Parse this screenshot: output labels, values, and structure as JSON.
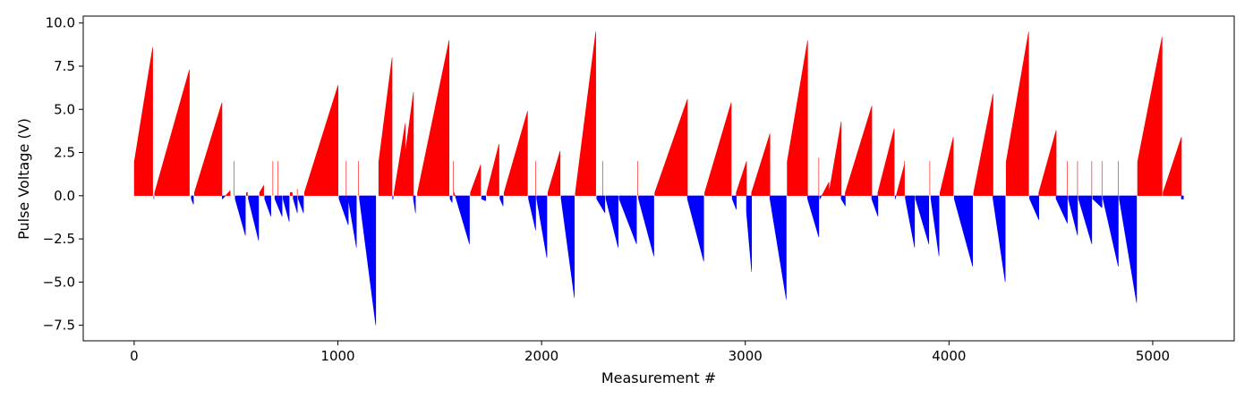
{
  "chart_data": {
    "type": "bar",
    "title": "",
    "xlabel": "Measurement #",
    "ylabel": "Pulse Voltage (V)",
    "xlim": [
      -250,
      5400
    ],
    "ylim": [
      -8.4,
      10.4
    ],
    "xticks": [
      0,
      1000,
      2000,
      3000,
      4000,
      5000
    ],
    "xtick_labels": [
      "0",
      "1000",
      "2000",
      "3000",
      "4000",
      "5000"
    ],
    "yticks": [
      10.0,
      7.5,
      5.0,
      2.5,
      0.0,
      -2.5,
      -5.0,
      -7.5
    ],
    "ytick_labels": [
      "10.0",
      "7.5",
      "5.0",
      "2.5",
      "0.0",
      "−2.5",
      "−5.0",
      "−7.5"
    ],
    "colors": {
      "positive": "#ff0000",
      "negative": "#0000ff",
      "axis": "#000000",
      "background": "#ffffff"
    },
    "grid": false,
    "legend": "none",
    "point_count": 5150,
    "ramps": [
      {
        "x_start": 0,
        "x_end": 90,
        "v_start": 2.0,
        "v_end": 8.6
      },
      {
        "x_start": 96,
        "x_end": 96,
        "v_start": -0.2,
        "v_end": -0.2
      },
      {
        "x_start": 100,
        "x_end": 270,
        "v_start": 0.2,
        "v_end": 7.3
      },
      {
        "x_start": 280,
        "x_end": 290,
        "v_start": -0.2,
        "v_end": -0.5
      },
      {
        "x_start": 295,
        "x_end": 430,
        "v_start": 0.2,
        "v_end": 5.4
      },
      {
        "x_start": 432,
        "x_end": 470,
        "v_start": -0.2,
        "v_end": 0.3
      },
      {
        "x_start": 490,
        "x_end": 490,
        "v_start": 2.0,
        "v_end": 2.0
      },
      {
        "x_start": 495,
        "x_end": 545,
        "v_start": -0.2,
        "v_end": -2.3
      },
      {
        "x_start": 550,
        "x_end": 555,
        "v_start": 0.2,
        "v_end": 0.2
      },
      {
        "x_start": 560,
        "x_end": 610,
        "v_start": -0.2,
        "v_end": -2.6
      },
      {
        "x_start": 615,
        "x_end": 635,
        "v_start": 0.2,
        "v_end": 0.6
      },
      {
        "x_start": 640,
        "x_end": 670,
        "v_start": -0.2,
        "v_end": -1.2
      },
      {
        "x_start": 680,
        "x_end": 680,
        "v_start": 2.0,
        "v_end": 2.0
      },
      {
        "x_start": 690,
        "x_end": 725,
        "v_start": -0.2,
        "v_end": -1.2
      },
      {
        "x_start": 705,
        "x_end": 705,
        "v_start": 2.0,
        "v_end": 2.0
      },
      {
        "x_start": 730,
        "x_end": 760,
        "v_start": -0.2,
        "v_end": -1.5
      },
      {
        "x_start": 765,
        "x_end": 775,
        "v_start": 0.2,
        "v_end": 0.2
      },
      {
        "x_start": 780,
        "x_end": 800,
        "v_start": -0.2,
        "v_end": -1.0
      },
      {
        "x_start": 800,
        "x_end": 800,
        "v_start": 0.4,
        "v_end": 0.4
      },
      {
        "x_start": 805,
        "x_end": 830,
        "v_start": -0.2,
        "v_end": -1.0
      },
      {
        "x_start": 835,
        "x_end": 1000,
        "v_start": 0.2,
        "v_end": 6.4
      },
      {
        "x_start": 1005,
        "x_end": 1050,
        "v_start": -0.2,
        "v_end": -1.7
      },
      {
        "x_start": 1040,
        "x_end": 1040,
        "v_start": 2.0,
        "v_end": 2.0
      },
      {
        "x_start": 1050,
        "x_end": 1090,
        "v_start": -0.2,
        "v_end": -3.0
      },
      {
        "x_start": 1100,
        "x_end": 1100,
        "v_start": 2.0,
        "v_end": 2.0
      },
      {
        "x_start": 1105,
        "x_end": 1185,
        "v_start": -0.2,
        "v_end": -7.5
      },
      {
        "x_start": 1200,
        "x_end": 1265,
        "v_start": 2.0,
        "v_end": 8.0
      },
      {
        "x_start": 1268,
        "x_end": 1270,
        "v_start": -0.2,
        "v_end": -0.2
      },
      {
        "x_start": 1275,
        "x_end": 1330,
        "v_start": 0.2,
        "v_end": 4.2
      },
      {
        "x_start": 1330,
        "x_end": 1370,
        "v_start": 2.5,
        "v_end": 6.0
      },
      {
        "x_start": 1370,
        "x_end": 1380,
        "v_start": -0.2,
        "v_end": -1.0
      },
      {
        "x_start": 1390,
        "x_end": 1545,
        "v_start": 0.2,
        "v_end": 9.0
      },
      {
        "x_start": 1550,
        "x_end": 1560,
        "v_start": -0.2,
        "v_end": -0.4
      },
      {
        "x_start": 1565,
        "x_end": 1565,
        "v_start": 2.0,
        "v_end": 2.0
      },
      {
        "x_start": 1570,
        "x_end": 1645,
        "v_start": 0.2,
        "v_end": -2.8
      },
      {
        "x_start": 1650,
        "x_end": 1700,
        "v_start": 0.2,
        "v_end": 1.8
      },
      {
        "x_start": 1705,
        "x_end": 1725,
        "v_start": -0.2,
        "v_end": -0.3
      },
      {
        "x_start": 1730,
        "x_end": 1790,
        "v_start": 0.2,
        "v_end": 3.0
      },
      {
        "x_start": 1795,
        "x_end": 1810,
        "v_start": -0.2,
        "v_end": -0.6
      },
      {
        "x_start": 1815,
        "x_end": 1930,
        "v_start": 0.2,
        "v_end": 4.9
      },
      {
        "x_start": 1935,
        "x_end": 1970,
        "v_start": -0.2,
        "v_end": -2.0
      },
      {
        "x_start": 1970,
        "x_end": 1970,
        "v_start": 2.0,
        "v_end": 2.0
      },
      {
        "x_start": 1975,
        "x_end": 2025,
        "v_start": -0.2,
        "v_end": -3.6
      },
      {
        "x_start": 2030,
        "x_end": 2090,
        "v_start": 0.2,
        "v_end": 2.6
      },
      {
        "x_start": 2095,
        "x_end": 2160,
        "v_start": -0.2,
        "v_end": -5.9
      },
      {
        "x_start": 2165,
        "x_end": 2265,
        "v_start": 0.2,
        "v_end": 9.5
      },
      {
        "x_start": 2270,
        "x_end": 2310,
        "v_start": -0.2,
        "v_end": -1.0
      },
      {
        "x_start": 2300,
        "x_end": 2300,
        "v_start": 2.0,
        "v_end": 2.0
      },
      {
        "x_start": 2315,
        "x_end": 2375,
        "v_start": -0.2,
        "v_end": -3.0
      },
      {
        "x_start": 2380,
        "x_end": 2465,
        "v_start": -0.2,
        "v_end": -2.8
      },
      {
        "x_start": 2470,
        "x_end": 2470,
        "v_start": 2.0,
        "v_end": 2.0
      },
      {
        "x_start": 2475,
        "x_end": 2550,
        "v_start": -0.2,
        "v_end": -3.5
      },
      {
        "x_start": 2555,
        "x_end": 2715,
        "v_start": 0.2,
        "v_end": 5.6
      },
      {
        "x_start": 2715,
        "x_end": 2795,
        "v_start": -0.2,
        "v_end": -3.8
      },
      {
        "x_start": 2800,
        "x_end": 2930,
        "v_start": 0.2,
        "v_end": 5.4
      },
      {
        "x_start": 2935,
        "x_end": 2955,
        "v_start": -0.2,
        "v_end": -0.8
      },
      {
        "x_start": 2955,
        "x_end": 3005,
        "v_start": 0.2,
        "v_end": 2.0
      },
      {
        "x_start": 3005,
        "x_end": 3030,
        "v_start": -1.0,
        "v_end": -4.4
      },
      {
        "x_start": 3030,
        "x_end": 3120,
        "v_start": 0.2,
        "v_end": 3.6
      },
      {
        "x_start": 3120,
        "x_end": 3200,
        "v_start": -0.2,
        "v_end": -6.0
      },
      {
        "x_start": 3205,
        "x_end": 3305,
        "v_start": 2.0,
        "v_end": 9.0
      },
      {
        "x_start": 3305,
        "x_end": 3360,
        "v_start": -0.2,
        "v_end": -2.4
      },
      {
        "x_start": 3360,
        "x_end": 3360,
        "v_start": 2.2,
        "v_end": 2.2
      },
      {
        "x_start": 3365,
        "x_end": 3410,
        "v_start": -0.2,
        "v_end": 0.8
      },
      {
        "x_start": 3410,
        "x_end": 3470,
        "v_start": 0.2,
        "v_end": 4.3
      },
      {
        "x_start": 3470,
        "x_end": 3490,
        "v_start": -0.2,
        "v_end": -0.6
      },
      {
        "x_start": 3490,
        "x_end": 3620,
        "v_start": 0.2,
        "v_end": 5.2
      },
      {
        "x_start": 3620,
        "x_end": 3650,
        "v_start": -0.2,
        "v_end": -1.2
      },
      {
        "x_start": 3650,
        "x_end": 3730,
        "v_start": 0.2,
        "v_end": 3.9
      },
      {
        "x_start": 3735,
        "x_end": 3780,
        "v_start": -0.2,
        "v_end": 1.8
      },
      {
        "x_start": 3780,
        "x_end": 3780,
        "v_start": 2.0,
        "v_end": 2.0
      },
      {
        "x_start": 3785,
        "x_end": 3830,
        "v_start": -0.2,
        "v_end": -3.0
      },
      {
        "x_start": 3835,
        "x_end": 3900,
        "v_start": -0.2,
        "v_end": -2.8
      },
      {
        "x_start": 3905,
        "x_end": 3905,
        "v_start": 2.0,
        "v_end": 2.0
      },
      {
        "x_start": 3910,
        "x_end": 3950,
        "v_start": -0.2,
        "v_end": -3.5
      },
      {
        "x_start": 3955,
        "x_end": 4020,
        "v_start": 0.2,
        "v_end": 3.4
      },
      {
        "x_start": 4025,
        "x_end": 4115,
        "v_start": -0.2,
        "v_end": -4.1
      },
      {
        "x_start": 4120,
        "x_end": 4215,
        "v_start": 0.2,
        "v_end": 5.9
      },
      {
        "x_start": 4215,
        "x_end": 4275,
        "v_start": -0.2,
        "v_end": -5.0
      },
      {
        "x_start": 4280,
        "x_end": 4390,
        "v_start": 2.0,
        "v_end": 9.5
      },
      {
        "x_start": 4395,
        "x_end": 4440,
        "v_start": -0.2,
        "v_end": -1.4
      },
      {
        "x_start": 4440,
        "x_end": 4525,
        "v_start": 0.2,
        "v_end": 3.8
      },
      {
        "x_start": 4525,
        "x_end": 4580,
        "v_start": -0.2,
        "v_end": -1.6
      },
      {
        "x_start": 4580,
        "x_end": 4580,
        "v_start": 2.0,
        "v_end": 2.0
      },
      {
        "x_start": 4585,
        "x_end": 4630,
        "v_start": -0.2,
        "v_end": -2.3
      },
      {
        "x_start": 4630,
        "x_end": 4630,
        "v_start": 2.0,
        "v_end": 2.0
      },
      {
        "x_start": 4635,
        "x_end": 4700,
        "v_start": -0.2,
        "v_end": -2.8
      },
      {
        "x_start": 4700,
        "x_end": 4700,
        "v_start": 2.0,
        "v_end": 2.0
      },
      {
        "x_start": 4705,
        "x_end": 4750,
        "v_start": -0.2,
        "v_end": -0.7
      },
      {
        "x_start": 4750,
        "x_end": 4750,
        "v_start": 2.0,
        "v_end": 2.0
      },
      {
        "x_start": 4755,
        "x_end": 4830,
        "v_start": -0.2,
        "v_end": -4.1
      },
      {
        "x_start": 4830,
        "x_end": 4830,
        "v_start": 2.0,
        "v_end": 2.0
      },
      {
        "x_start": 4835,
        "x_end": 4920,
        "v_start": -0.2,
        "v_end": -6.2
      },
      {
        "x_start": 4925,
        "x_end": 5045,
        "v_start": 2.0,
        "v_end": 9.2
      },
      {
        "x_start": 5050,
        "x_end": 5140,
        "v_start": 0.2,
        "v_end": 3.4
      },
      {
        "x_start": 5140,
        "x_end": 5150,
        "v_start": -0.2,
        "v_end": -0.2
      }
    ]
  }
}
